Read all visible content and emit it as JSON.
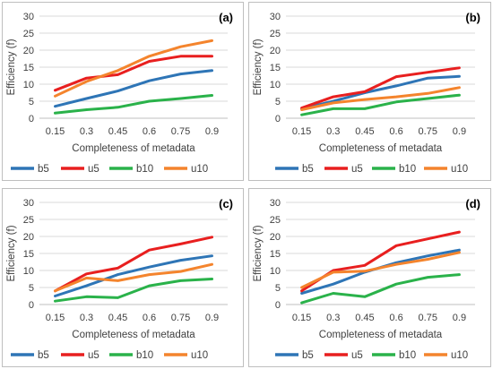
{
  "chart_data": [
    {
      "type": "line",
      "panel_label": "(a)",
      "x": [
        "0.15",
        "0.3",
        "0.45",
        "0.6",
        "0.75",
        "0.9"
      ],
      "xlabel": "Completeness of metadata",
      "ylabel": "Efficiency (f)",
      "ylim": [
        0,
        30
      ],
      "yticks": [
        0,
        5,
        10,
        15,
        20,
        25,
        30
      ],
      "grid": "horizontal",
      "legend": "bottom",
      "series": [
        {
          "name": "b5",
          "color": "#2e75b6",
          "values": [
            3.5,
            5.8,
            8.0,
            11.0,
            13.0,
            14.0
          ]
        },
        {
          "name": "u5",
          "color": "#e81f1f",
          "values": [
            8.2,
            11.8,
            12.8,
            16.7,
            18.2,
            18.2
          ]
        },
        {
          "name": "b10",
          "color": "#2ab24a",
          "values": [
            1.5,
            2.5,
            3.2,
            5.0,
            5.8,
            6.7
          ]
        },
        {
          "name": "u10",
          "color": "#f4842d",
          "values": [
            6.5,
            10.8,
            14.0,
            18.2,
            21.0,
            22.8
          ]
        }
      ]
    },
    {
      "type": "line",
      "panel_label": "(b)",
      "x": [
        "0.15",
        "0.3",
        "0.45",
        "0.6",
        "0.75",
        "0.9"
      ],
      "xlabel": "Completeness of metadata",
      "ylabel": "Efficiency (f)",
      "ylim": [
        0,
        30
      ],
      "yticks": [
        0,
        5,
        10,
        15,
        20,
        25,
        30
      ],
      "grid": "horizontal",
      "legend": "bottom",
      "series": [
        {
          "name": "b5",
          "color": "#2e75b6",
          "values": [
            2.8,
            5.0,
            7.5,
            9.5,
            11.8,
            12.3
          ]
        },
        {
          "name": "u5",
          "color": "#e81f1f",
          "values": [
            3.0,
            6.3,
            7.8,
            12.2,
            13.5,
            14.8
          ]
        },
        {
          "name": "b10",
          "color": "#2ab24a",
          "values": [
            1.0,
            2.8,
            2.8,
            4.8,
            5.8,
            6.8
          ]
        },
        {
          "name": "u10",
          "color": "#f4842d",
          "values": [
            2.5,
            4.5,
            5.5,
            6.3,
            7.3,
            9.0
          ]
        }
      ]
    },
    {
      "type": "line",
      "panel_label": "(c)",
      "x": [
        "0.15",
        "0.3",
        "0.45",
        "0.6",
        "0.75",
        "0.9"
      ],
      "xlabel": "Completeness of metadata",
      "ylabel": "Efficiency (f)",
      "ylim": [
        0,
        30
      ],
      "yticks": [
        0,
        5,
        10,
        15,
        20,
        25,
        30
      ],
      "grid": "horizontal",
      "legend": "bottom",
      "series": [
        {
          "name": "b5",
          "color": "#2e75b6",
          "values": [
            2.5,
            5.5,
            8.8,
            11.0,
            13.0,
            14.3
          ]
        },
        {
          "name": "u5",
          "color": "#e81f1f",
          "values": [
            4.0,
            9.0,
            10.7,
            16.0,
            17.8,
            19.8
          ]
        },
        {
          "name": "b10",
          "color": "#2ab24a",
          "values": [
            1.0,
            2.3,
            2.0,
            5.5,
            7.0,
            7.5
          ]
        },
        {
          "name": "u10",
          "color": "#f4842d",
          "values": [
            4.0,
            7.8,
            7.0,
            8.8,
            9.7,
            11.8
          ]
        }
      ]
    },
    {
      "type": "line",
      "panel_label": "(d)",
      "x": [
        "0.15",
        "0.3",
        "0.45",
        "0.6",
        "0.75",
        "0.9"
      ],
      "xlabel": "Completeness of metadata",
      "ylabel": "Efficiency (f)",
      "ylim": [
        0,
        30
      ],
      "yticks": [
        0,
        5,
        10,
        15,
        20,
        25,
        30
      ],
      "grid": "horizontal",
      "legend": "bottom",
      "series": [
        {
          "name": "b5",
          "color": "#2e75b6",
          "values": [
            3.3,
            6.0,
            9.5,
            12.3,
            14.3,
            16.0
          ]
        },
        {
          "name": "u5",
          "color": "#e81f1f",
          "values": [
            4.0,
            10.0,
            11.5,
            17.3,
            19.3,
            21.3
          ]
        },
        {
          "name": "b10",
          "color": "#2ab24a",
          "values": [
            0.5,
            3.3,
            2.3,
            6.0,
            8.0,
            8.8
          ]
        },
        {
          "name": "u10",
          "color": "#f4842d",
          "values": [
            5.0,
            9.5,
            9.8,
            11.8,
            13.3,
            15.3
          ]
        }
      ]
    }
  ],
  "style": {
    "grid_color": "#d9d9d9",
    "text_color": "#404040",
    "panel_border": "#bfbfbf"
  }
}
